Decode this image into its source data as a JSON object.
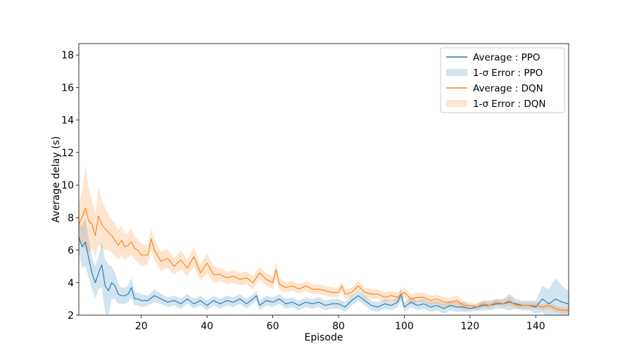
{
  "chart_data": {
    "type": "line",
    "title": "",
    "xlabel": "Episode",
    "ylabel": "Average delay (s)",
    "xlim": [
      1,
      150
    ],
    "ylim": [
      2,
      18.7
    ],
    "xticks": [
      20,
      40,
      60,
      80,
      100,
      120,
      140
    ],
    "yticks": [
      2,
      4,
      6,
      8,
      10,
      12,
      14,
      16,
      18
    ],
    "grid": false,
    "legend_position": "top-right",
    "legend": [
      {
        "label": "Average : PPO",
        "kind": "line",
        "series": 0
      },
      {
        "label": "1-σ Error : PPO",
        "kind": "band",
        "series": 0
      },
      {
        "label": "Average : DQN",
        "kind": "line",
        "series": 1
      },
      {
        "label": "1-σ Error : DQN",
        "kind": "band",
        "series": 1
      }
    ],
    "series": [
      {
        "name": "PPO",
        "color": "#1f77b4",
        "band_color": "#1f77b4",
        "band_opacity": 0.2,
        "points": [
          [
            1,
            6.8,
            0.9
          ],
          [
            2,
            6.2,
            1.3
          ],
          [
            3,
            6.5,
            1.5
          ],
          [
            4,
            5.5,
            1.2
          ],
          [
            5,
            4.6,
            1.0
          ],
          [
            6,
            4.0,
            1.0
          ],
          [
            7,
            4.6,
            1.0
          ],
          [
            8,
            5.1,
            1.4
          ],
          [
            9,
            3.8,
            1.6
          ],
          [
            10,
            3.5,
            1.6
          ],
          [
            11,
            4.0,
            1.0
          ],
          [
            12,
            3.8,
            0.8
          ],
          [
            13,
            3.3,
            0.6
          ],
          [
            14,
            3.2,
            0.5
          ],
          [
            15,
            3.2,
            0.5
          ],
          [
            16,
            3.3,
            0.5
          ],
          [
            17,
            3.7,
            0.6
          ],
          [
            18,
            3.0,
            0.4
          ],
          [
            19,
            3.0,
            0.4
          ],
          [
            20,
            2.9,
            0.4
          ],
          [
            22,
            2.9,
            0.3
          ],
          [
            24,
            3.2,
            0.4
          ],
          [
            26,
            3.0,
            0.3
          ],
          [
            28,
            2.8,
            0.3
          ],
          [
            30,
            2.9,
            0.3
          ],
          [
            32,
            2.7,
            0.3
          ],
          [
            34,
            3.0,
            0.3
          ],
          [
            36,
            2.7,
            0.3
          ],
          [
            38,
            2.9,
            0.3
          ],
          [
            40,
            2.6,
            0.3
          ],
          [
            42,
            2.9,
            0.3
          ],
          [
            44,
            2.7,
            0.3
          ],
          [
            46,
            2.9,
            0.3
          ],
          [
            48,
            2.8,
            0.3
          ],
          [
            50,
            3.0,
            0.3
          ],
          [
            52,
            2.7,
            0.3
          ],
          [
            54,
            3.0,
            0.3
          ],
          [
            55,
            3.2,
            0.3
          ],
          [
            56,
            2.6,
            0.3
          ],
          [
            58,
            2.9,
            0.3
          ],
          [
            60,
            2.8,
            0.3
          ],
          [
            62,
            3.0,
            0.3
          ],
          [
            64,
            2.7,
            0.3
          ],
          [
            66,
            2.8,
            0.3
          ],
          [
            68,
            2.6,
            0.3
          ],
          [
            70,
            2.8,
            0.3
          ],
          [
            72,
            2.7,
            0.3
          ],
          [
            74,
            2.8,
            0.3
          ],
          [
            76,
            2.6,
            0.3
          ],
          [
            78,
            2.7,
            0.3
          ],
          [
            80,
            2.7,
            0.3
          ],
          [
            82,
            2.5,
            0.3
          ],
          [
            84,
            2.9,
            0.3
          ],
          [
            86,
            3.2,
            0.3
          ],
          [
            88,
            2.9,
            0.3
          ],
          [
            90,
            2.6,
            0.3
          ],
          [
            92,
            2.5,
            0.3
          ],
          [
            94,
            2.7,
            0.3
          ],
          [
            96,
            2.6,
            0.3
          ],
          [
            98,
            2.8,
            0.3
          ],
          [
            99,
            3.3,
            0.4
          ],
          [
            100,
            2.5,
            0.3
          ],
          [
            102,
            2.8,
            0.3
          ],
          [
            104,
            2.6,
            0.3
          ],
          [
            106,
            2.7,
            0.3
          ],
          [
            108,
            2.5,
            0.3
          ],
          [
            110,
            2.6,
            0.3
          ],
          [
            112,
            2.4,
            0.3
          ],
          [
            114,
            2.6,
            0.3
          ],
          [
            116,
            2.5,
            0.3
          ],
          [
            118,
            2.5,
            0.3
          ],
          [
            120,
            2.4,
            0.2
          ],
          [
            122,
            2.5,
            0.2
          ],
          [
            124,
            2.6,
            0.3
          ],
          [
            126,
            2.6,
            0.3
          ],
          [
            128,
            2.7,
            0.3
          ],
          [
            130,
            2.7,
            0.3
          ],
          [
            132,
            2.8,
            0.5
          ],
          [
            134,
            2.7,
            0.3
          ],
          [
            136,
            2.6,
            0.3
          ],
          [
            138,
            2.6,
            0.3
          ],
          [
            140,
            2.5,
            0.4
          ],
          [
            142,
            3.0,
            0.8
          ],
          [
            144,
            2.7,
            0.9
          ],
          [
            146,
            3.0,
            1.3
          ],
          [
            148,
            2.8,
            1.0
          ],
          [
            150,
            2.7,
            0.8
          ]
        ]
      },
      {
        "name": "DQN",
        "color": "#ff7f0e",
        "band_color": "#ff7f0e",
        "band_opacity": 0.2,
        "points": [
          [
            1,
            7.6,
            1.2
          ],
          [
            2,
            8.0,
            1.6
          ],
          [
            3,
            8.6,
            2.6
          ],
          [
            4,
            7.8,
            2.0
          ],
          [
            5,
            7.6,
            1.5
          ],
          [
            6,
            6.9,
            1.3
          ],
          [
            7,
            8.1,
            1.8
          ],
          [
            8,
            7.6,
            1.5
          ],
          [
            9,
            7.3,
            1.3
          ],
          [
            10,
            7.1,
            1.1
          ],
          [
            11,
            6.9,
            1.0
          ],
          [
            12,
            6.6,
            1.0
          ],
          [
            13,
            6.3,
            0.9
          ],
          [
            14,
            6.6,
            0.9
          ],
          [
            15,
            6.2,
            0.8
          ],
          [
            16,
            6.3,
            0.8
          ],
          [
            17,
            6.5,
            0.8
          ],
          [
            18,
            6.1,
            0.7
          ],
          [
            19,
            6.0,
            0.7
          ],
          [
            20,
            5.7,
            0.7
          ],
          [
            22,
            5.7,
            0.6
          ],
          [
            23,
            6.7,
            0.7
          ],
          [
            24,
            6.0,
            0.6
          ],
          [
            26,
            5.3,
            0.6
          ],
          [
            28,
            5.5,
            0.6
          ],
          [
            30,
            5.0,
            0.5
          ],
          [
            32,
            5.4,
            0.6
          ],
          [
            34,
            4.9,
            0.5
          ],
          [
            36,
            5.6,
            0.6
          ],
          [
            38,
            4.6,
            0.5
          ],
          [
            40,
            5.2,
            0.6
          ],
          [
            42,
            4.5,
            0.5
          ],
          [
            44,
            4.5,
            0.4
          ],
          [
            46,
            4.3,
            0.4
          ],
          [
            48,
            4.4,
            0.4
          ],
          [
            50,
            4.2,
            0.4
          ],
          [
            52,
            4.3,
            0.4
          ],
          [
            54,
            4.0,
            0.4
          ],
          [
            56,
            4.6,
            0.4
          ],
          [
            58,
            4.2,
            0.4
          ],
          [
            60,
            4.0,
            0.4
          ],
          [
            61,
            4.8,
            0.5
          ],
          [
            62,
            3.9,
            0.4
          ],
          [
            64,
            3.7,
            0.3
          ],
          [
            66,
            3.8,
            0.3
          ],
          [
            68,
            3.6,
            0.3
          ],
          [
            70,
            3.8,
            0.3
          ],
          [
            72,
            3.6,
            0.3
          ],
          [
            74,
            3.6,
            0.3
          ],
          [
            76,
            3.5,
            0.3
          ],
          [
            78,
            3.4,
            0.3
          ],
          [
            80,
            3.4,
            0.3
          ],
          [
            81,
            3.8,
            0.3
          ],
          [
            82,
            3.3,
            0.3
          ],
          [
            84,
            3.4,
            0.3
          ],
          [
            86,
            3.8,
            0.3
          ],
          [
            88,
            3.4,
            0.3
          ],
          [
            90,
            3.3,
            0.3
          ],
          [
            92,
            3.3,
            0.3
          ],
          [
            94,
            3.1,
            0.3
          ],
          [
            96,
            3.2,
            0.3
          ],
          [
            98,
            3.1,
            0.3
          ],
          [
            100,
            3.4,
            0.3
          ],
          [
            102,
            3.0,
            0.3
          ],
          [
            104,
            3.1,
            0.3
          ],
          [
            106,
            3.1,
            0.3
          ],
          [
            108,
            2.9,
            0.3
          ],
          [
            110,
            3.0,
            0.3
          ],
          [
            112,
            2.8,
            0.3
          ],
          [
            114,
            2.8,
            0.3
          ],
          [
            116,
            2.9,
            0.3
          ],
          [
            118,
            2.6,
            0.3
          ],
          [
            120,
            2.6,
            0.2
          ],
          [
            122,
            2.5,
            0.2
          ],
          [
            124,
            2.7,
            0.2
          ],
          [
            126,
            2.6,
            0.2
          ],
          [
            128,
            2.8,
            0.2
          ],
          [
            130,
            2.7,
            0.2
          ],
          [
            132,
            2.9,
            0.3
          ],
          [
            134,
            2.6,
            0.2
          ],
          [
            136,
            2.6,
            0.2
          ],
          [
            138,
            2.6,
            0.2
          ],
          [
            140,
            2.6,
            0.2
          ],
          [
            142,
            2.5,
            0.2
          ],
          [
            144,
            2.6,
            0.2
          ],
          [
            146,
            2.4,
            0.2
          ],
          [
            148,
            2.3,
            0.2
          ],
          [
            150,
            2.3,
            0.2
          ]
        ]
      }
    ]
  }
}
